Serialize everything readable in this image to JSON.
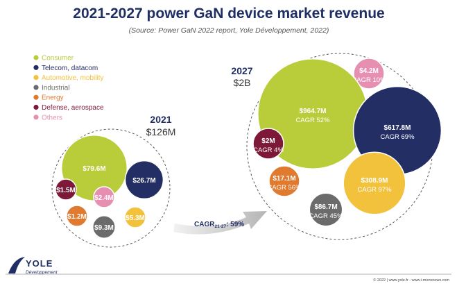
{
  "title": "2021-2027 power GaN device market revenue",
  "source": "(Source: Power GaN 2022 report, Yole Développement, 2022)",
  "legend": [
    {
      "label": "Consumer",
      "color": "#b9cc3a"
    },
    {
      "label": "Telecom, datacom",
      "color": "#232f64"
    },
    {
      "label": "Automotive, mobility",
      "color": "#f3c23c"
    },
    {
      "label": "Industrial",
      "color": "#6b6b6b"
    },
    {
      "label": "Energy",
      "color": "#e07a2f"
    },
    {
      "label": "Defense, aerospace",
      "color": "#7d1838"
    },
    {
      "label": "Others",
      "color": "#e78fb1"
    }
  ],
  "chart_data": {
    "type": "bubble",
    "groups": [
      {
        "year": "2021",
        "total": "$126M",
        "bubbles": [
          {
            "segment": "Consumer",
            "value": 79.6,
            "label": "$79.6M",
            "cagr": ""
          },
          {
            "segment": "Telecom, datacom",
            "value": 26.7,
            "label": "$26.7M",
            "cagr": ""
          },
          {
            "segment": "Defense, aerospace",
            "value": 1.5,
            "label": "$1.5M",
            "cagr": ""
          },
          {
            "segment": "Others",
            "value": 2.4,
            "label": "$2.4M",
            "cagr": ""
          },
          {
            "segment": "Energy",
            "value": 1.2,
            "label": "$1.2M",
            "cagr": ""
          },
          {
            "segment": "Automotive, mobility",
            "value": 5.3,
            "label": "$5.3M",
            "cagr": ""
          },
          {
            "segment": "Industrial",
            "value": 9.3,
            "label": "$9.3M",
            "cagr": ""
          }
        ]
      },
      {
        "year": "2027",
        "total": "$2B",
        "bubbles": [
          {
            "segment": "Others",
            "value": 4.2,
            "label": "$4.2M",
            "cagr": "CAGR 10%"
          },
          {
            "segment": "Consumer",
            "value": 964.7,
            "label": "$964.7M",
            "cagr": "CAGR 52%"
          },
          {
            "segment": "Telecom, datacom",
            "value": 617.8,
            "label": "$617.8M",
            "cagr": "CAGR 69%"
          },
          {
            "segment": "Defense, aerospace",
            "value": 2,
            "label": "$2M",
            "cagr": "CAGR 4%"
          },
          {
            "segment": "Energy",
            "value": 17.1,
            "label": "$17.1M",
            "cagr": "CAGR 56%"
          },
          {
            "segment": "Automotive, mobility",
            "value": 308.9,
            "label": "$308.9M",
            "cagr": "CAGR 97%"
          },
          {
            "segment": "Industrial",
            "value": 86.7,
            "label": "$86.7M",
            "cagr": "CAGR 45%"
          }
        ]
      }
    ],
    "arrow_label": {
      "prefix": "CAGR",
      "sub": "21-27",
      "suffix": ": 59%"
    }
  },
  "footer": {
    "logo_text": "YOLE",
    "logo_sub": "Développement",
    "copyright": "© 2022 | www.yole.fr - www.i-micronews.com"
  }
}
